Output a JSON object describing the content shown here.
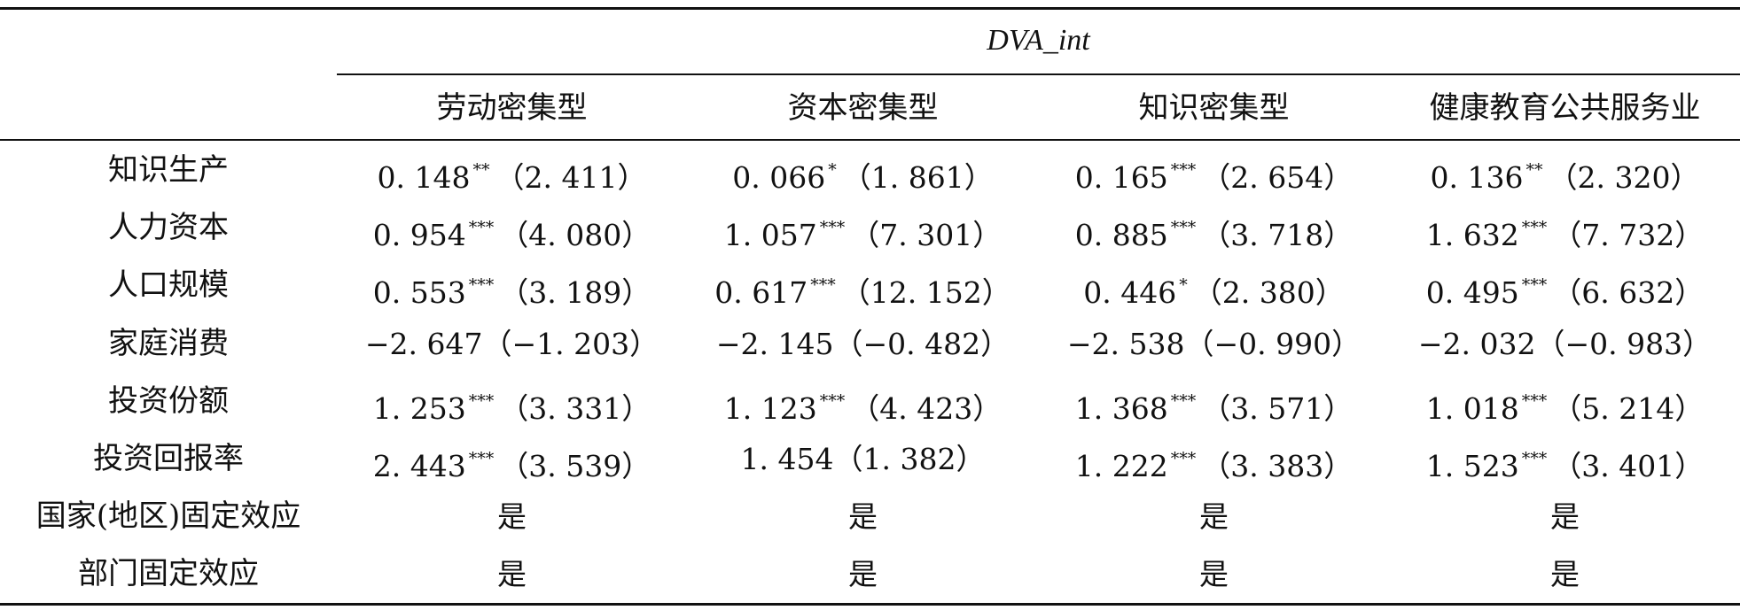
{
  "header": {
    "group_title": "DVA_int",
    "columns": [
      "劳动密集型",
      "资本密集型",
      "知识密集型",
      "健康教育公共服务业"
    ]
  },
  "rows": [
    {
      "label": "知识生产",
      "cells": [
        {
          "coef": "0. 148",
          "sig": "**",
          "t": "（2. 411）"
        },
        {
          "coef": "0. 066",
          "sig": "*",
          "t": "（1. 861）"
        },
        {
          "coef": "0. 165",
          "sig": "***",
          "t": "（2. 654）"
        },
        {
          "coef": "0. 136",
          "sig": "**",
          "t": "（2. 320）"
        }
      ]
    },
    {
      "label": "人力资本",
      "cells": [
        {
          "coef": "0. 954",
          "sig": "***",
          "t": "（4. 080）"
        },
        {
          "coef": "1. 057",
          "sig": "***",
          "t": "（7. 301）"
        },
        {
          "coef": "0. 885",
          "sig": "***",
          "t": "（3. 718）"
        },
        {
          "coef": "1. 632",
          "sig": "***",
          "t": "（7. 732）"
        }
      ]
    },
    {
      "label": "人口规模",
      "cells": [
        {
          "coef": "0. 553",
          "sig": "***",
          "t": "（3. 189）"
        },
        {
          "coef": "0. 617",
          "sig": "***",
          "t": "（12. 152）"
        },
        {
          "coef": "0. 446",
          "sig": "*",
          "t": "（2. 380）"
        },
        {
          "coef": "0. 495",
          "sig": "***",
          "t": "（6. 632）"
        }
      ]
    },
    {
      "label": "家庭消费",
      "cells": [
        {
          "coef": "−2. 647",
          "sig": "",
          "t": "（−1. 203）"
        },
        {
          "coef": "−2. 145",
          "sig": "",
          "t": "（−0. 482）"
        },
        {
          "coef": "−2. 538",
          "sig": "",
          "t": "（−0. 990）"
        },
        {
          "coef": "−2. 032",
          "sig": "",
          "t": "（−0. 983）"
        }
      ]
    },
    {
      "label": "投资份额",
      "cells": [
        {
          "coef": "1. 253",
          "sig": "***",
          "t": "（3. 331）"
        },
        {
          "coef": "1. 123",
          "sig": "***",
          "t": "（4. 423）"
        },
        {
          "coef": "1. 368",
          "sig": "***",
          "t": "（3. 571）"
        },
        {
          "coef": "1. 018",
          "sig": "***",
          "t": "（5. 214）"
        }
      ]
    },
    {
      "label": "投资回报率",
      "cells": [
        {
          "coef": "2. 443",
          "sig": "***",
          "t": "（3. 539）"
        },
        {
          "coef": "1. 454",
          "sig": "",
          "t": "（1. 382）"
        },
        {
          "coef": "1. 222",
          "sig": "***",
          "t": "（3. 383）"
        },
        {
          "coef": "1. 523",
          "sig": "***",
          "t": "（3. 401）"
        }
      ]
    },
    {
      "label": "国家(地区)固定效应",
      "cells": [
        {
          "text": "是"
        },
        {
          "text": "是"
        },
        {
          "text": "是"
        },
        {
          "text": "是"
        }
      ]
    },
    {
      "label": "部门固定效应",
      "cells": [
        {
          "text": "是"
        },
        {
          "text": "是"
        },
        {
          "text": "是"
        },
        {
          "text": "是"
        }
      ]
    }
  ]
}
